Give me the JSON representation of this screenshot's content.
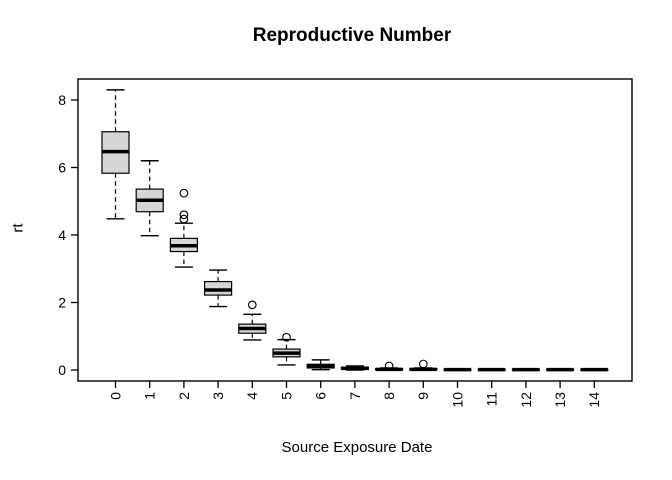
{
  "window": {
    "background": "#ffffff"
  },
  "chart_data": {
    "type": "boxplot",
    "title": "Reproductive Number",
    "xlabel": "Source Exposure Date",
    "ylabel": "rt",
    "categories": [
      "0",
      "1",
      "2",
      "3",
      "4",
      "5",
      "6",
      "7",
      "8",
      "9",
      "10",
      "11",
      "12",
      "13",
      "14"
    ],
    "y_ticks": [
      0,
      2,
      4,
      6,
      8
    ],
    "ylim": [
      -0.33,
      8.62
    ],
    "grid": false,
    "legend": "none",
    "colors": {
      "box_fill": "#d6d6d6",
      "stroke": "#000000",
      "background": "#ffffff"
    },
    "boxes": [
      {
        "category": "0",
        "whisker_low": 4.48,
        "q1": 5.83,
        "median": 6.47,
        "q3": 7.06,
        "whisker_high": 8.3,
        "outliers": []
      },
      {
        "category": "1",
        "whisker_low": 3.98,
        "q1": 4.69,
        "median": 5.03,
        "q3": 5.36,
        "whisker_high": 6.2,
        "outliers": []
      },
      {
        "category": "2",
        "whisker_low": 3.05,
        "q1": 3.51,
        "median": 3.68,
        "q3": 3.9,
        "whisker_high": 4.35,
        "outliers": [
          4.47,
          4.6,
          5.24
        ]
      },
      {
        "category": "3",
        "whisker_low": 1.88,
        "q1": 2.22,
        "median": 2.37,
        "q3": 2.62,
        "whisker_high": 2.96,
        "outliers": []
      },
      {
        "category": "4",
        "whisker_low": 0.89,
        "q1": 1.09,
        "median": 1.23,
        "q3": 1.36,
        "whisker_high": 1.65,
        "outliers": [
          1.93
        ]
      },
      {
        "category": "5",
        "whisker_low": 0.15,
        "q1": 0.39,
        "median": 0.5,
        "q3": 0.62,
        "whisker_high": 0.9,
        "outliers": [
          0.97
        ]
      },
      {
        "category": "6",
        "whisker_low": 0.01,
        "q1": 0.06,
        "median": 0.11,
        "q3": 0.17,
        "whisker_high": 0.3,
        "outliers": []
      },
      {
        "category": "7",
        "whisker_low": 0.0,
        "q1": 0.02,
        "median": 0.05,
        "q3": 0.08,
        "whisker_high": 0.12,
        "outliers": []
      },
      {
        "category": "8",
        "whisker_low": 0.0,
        "q1": 0.01,
        "median": 0.02,
        "q3": 0.04,
        "whisker_high": 0.06,
        "outliers": [
          0.12
        ]
      },
      {
        "category": "9",
        "whisker_low": 0.0,
        "q1": 0.01,
        "median": 0.02,
        "q3": 0.04,
        "whisker_high": 0.06,
        "outliers": [
          0.18
        ]
      },
      {
        "category": "10",
        "whisker_low": 0.0,
        "q1": 0.0,
        "median": 0.01,
        "q3": 0.02,
        "whisker_high": 0.03,
        "outliers": []
      },
      {
        "category": "11",
        "whisker_low": 0.0,
        "q1": 0.0,
        "median": 0.01,
        "q3": 0.02,
        "whisker_high": 0.03,
        "outliers": []
      },
      {
        "category": "12",
        "whisker_low": 0.0,
        "q1": 0.0,
        "median": 0.01,
        "q3": 0.02,
        "whisker_high": 0.03,
        "outliers": []
      },
      {
        "category": "13",
        "whisker_low": 0.0,
        "q1": 0.0,
        "median": 0.01,
        "q3": 0.02,
        "whisker_high": 0.03,
        "outliers": []
      },
      {
        "category": "14",
        "whisker_low": 0.0,
        "q1": 0.0,
        "median": 0.01,
        "q3": 0.02,
        "whisker_high": 0.03,
        "outliers": []
      }
    ]
  }
}
